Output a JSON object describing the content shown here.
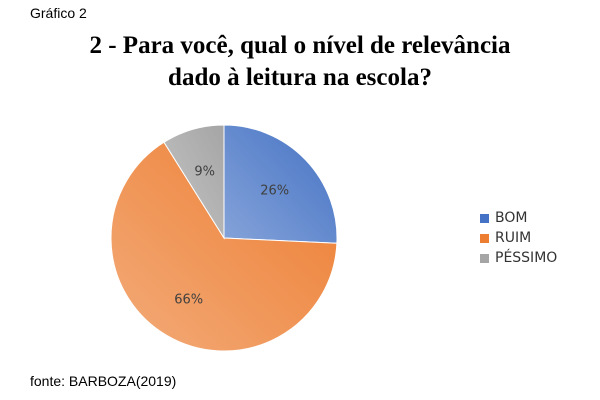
{
  "figure_caption": "Gráfico 2",
  "source_note": "fonte: BARBOZA(2019)",
  "chart_data": {
    "type": "pie",
    "title_line1": "2 - Para você, qual o nível de relevância",
    "title_line2": "dado à leitura na escola?",
    "categories": [
      "BOM",
      "RUIM",
      "PÉSSIMO"
    ],
    "values": [
      26,
      66,
      9
    ],
    "data_labels": [
      "26%",
      "66%",
      "9%"
    ],
    "colors": [
      "#4472C4",
      "#ED7D31",
      "#A5A5A5"
    ],
    "start_angle_deg": 0,
    "direction": "clockwise",
    "legend_position": "right"
  }
}
